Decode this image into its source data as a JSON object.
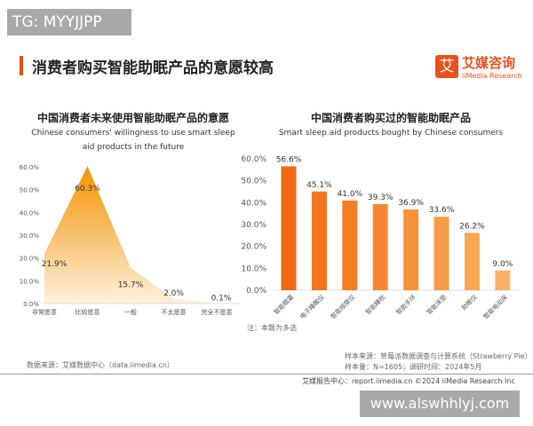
{
  "watermark_top": "TG: MYYJJPP",
  "title": "消费者购买智能助眠产品的意愿较高",
  "logo": {
    "cn": "艾媒咨询",
    "en": "iiMedia Research",
    "mark": "艾"
  },
  "chart_data": [
    {
      "type": "area",
      "title": "中国消费者未来使用智能助眠产品的意愿",
      "subtitle": "Chinese consumers' willingness to use smart sleep aid products in the future",
      "categories": [
        "非常愿意",
        "比较愿意",
        "一般",
        "不太愿意",
        "完全不愿意"
      ],
      "values": [
        21.9,
        60.3,
        15.7,
        2.0,
        0.1
      ],
      "value_labels": [
        "21.9%",
        "60.3%",
        "15.7%",
        "2.0%",
        "0.1%"
      ],
      "yticks": [
        "0.0%",
        "10.0%",
        "20.0%",
        "30.0%",
        "40.0%",
        "50.0%",
        "60.0%"
      ],
      "ylim": [
        0,
        60
      ],
      "color": "#f39200"
    },
    {
      "type": "bar",
      "title": "中国消费者购买过的智能助眠产品",
      "subtitle": "Smart sleep aid products bought by Chinese consumers",
      "categories": [
        "智能眼罩",
        "电子睡眠仪",
        "智能按摩仪",
        "智能睡枕",
        "智能手环",
        "智能床垫",
        "助眠仪",
        "智能电动床"
      ],
      "values": [
        56.6,
        45.1,
        41.0,
        39.3,
        36.9,
        33.6,
        26.2,
        9.0
      ],
      "value_labels": [
        "56.6%",
        "45.1%",
        "41.0%",
        "39.3%",
        "36.9%",
        "33.6%",
        "26.2%",
        "9.0%"
      ],
      "yticks": [
        "0.0%",
        "10.0%",
        "20.0%",
        "30.0%",
        "40.0%",
        "50.0%",
        "60.0%"
      ],
      "ylim": [
        0,
        60
      ],
      "colors": [
        "#f06a14",
        "#f2741c",
        "#f37e26",
        "#f48830",
        "#f5923a",
        "#f69c46",
        "#f7a654",
        "#f8b068"
      ]
    }
  ],
  "note": "注：本题为多选",
  "source_left": "数据来源：艾媒数据中心（data.iimedia.cn）",
  "source_right1": "样本来源：草莓派数据调查与计算系统（Strawberry Pie）",
  "source_right2": "样本量：N=1605；调研时间：2024年5月",
  "footer": "艾媒报告中心：report.iimedia.cn    ©2024  iiMedia Research Inc",
  "watermark_bottom": "www.alswhhlyj.com"
}
